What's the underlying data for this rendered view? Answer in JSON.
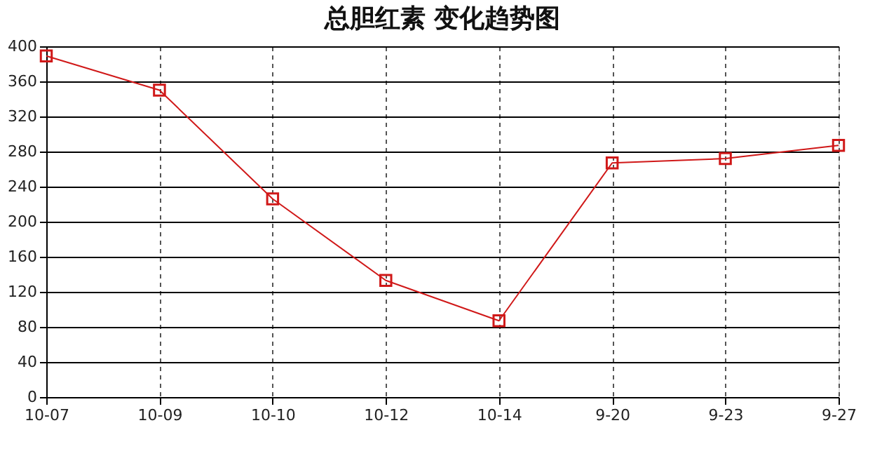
{
  "chart_data": {
    "type": "line",
    "title": "总胆红素 变化趋势图",
    "categories": [
      "10-07",
      "10-09",
      "10-10",
      "10-12",
      "10-14",
      "9-20",
      "9-23",
      "9-27"
    ],
    "series": [
      {
        "color": "#d01818",
        "values": [
          389,
          350,
          226,
          133,
          87,
          267,
          272,
          287
        ]
      }
    ],
    "ylim": [
      0,
      400
    ],
    "yticks": [
      0,
      40,
      80,
      120,
      160,
      200,
      240,
      280,
      320,
      360,
      400
    ],
    "grid": true,
    "marker": "square",
    "line_style": "solid"
  }
}
